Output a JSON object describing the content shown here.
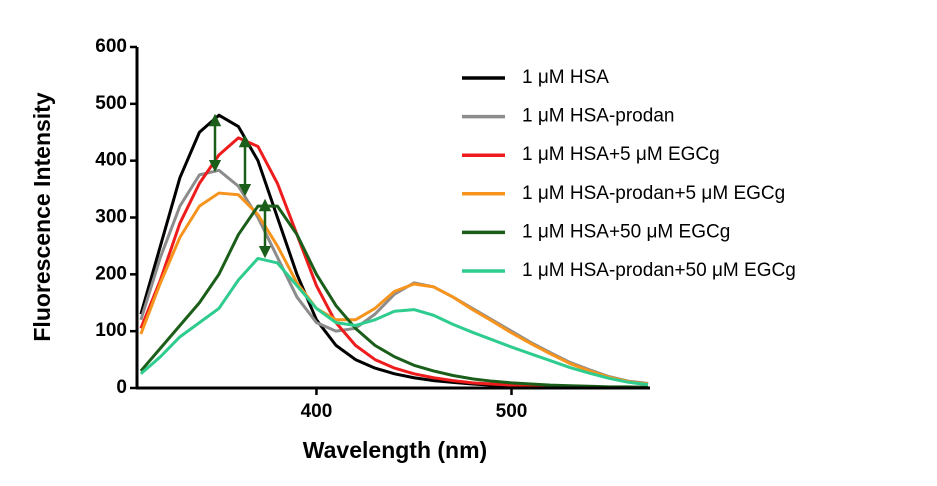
{
  "chart_data": {
    "type": "line",
    "x_label": "Wavelength (nm)",
    "y_label": "Fluorescence Intensity",
    "xlim": [
      308,
      571
    ],
    "xticks": [
      400,
      500
    ],
    "ylim": [
      0,
      600
    ],
    "yticks": [
      0,
      100,
      200,
      300,
      400,
      500,
      600
    ],
    "grid": false,
    "legend": "upper right",
    "x": [
      310,
      320,
      330,
      340,
      350,
      360,
      370,
      380,
      390,
      400,
      410,
      420,
      430,
      440,
      450,
      460,
      470,
      480,
      490,
      500,
      510,
      520,
      530,
      540,
      550,
      560,
      570
    ],
    "series": [
      {
        "name": "1 μM HSA",
        "color": "#000000",
        "values": [
          130,
          250,
          370,
          450,
          480,
          460,
          400,
          300,
          200,
          120,
          75,
          50,
          35,
          25,
          18,
          13,
          10,
          7,
          5,
          4,
          3,
          3,
          2,
          2,
          1,
          1,
          1
        ]
      },
      {
        "name": "1 μM HSA-prodan",
        "color": "#8c8c8c",
        "values": [
          120,
          230,
          320,
          375,
          383,
          355,
          300,
          230,
          160,
          115,
          100,
          105,
          130,
          165,
          185,
          178,
          160,
          140,
          120,
          100,
          80,
          62,
          45,
          32,
          20,
          12,
          8
        ]
      },
      {
        "name": "1 μM HSA+5 μM EGCg",
        "color": "#ee1c1c",
        "values": [
          105,
          190,
          290,
          360,
          410,
          440,
          425,
          360,
          270,
          180,
          115,
          75,
          50,
          35,
          25,
          18,
          13,
          9,
          7,
          5,
          4,
          3,
          2,
          2,
          1,
          1,
          1
        ]
      },
      {
        "name": "1 μM HSA-prodan+5 μM EGCg",
        "color": "#f7941d",
        "values": [
          95,
          185,
          265,
          320,
          343,
          340,
          305,
          250,
          185,
          140,
          120,
          120,
          140,
          170,
          183,
          178,
          160,
          138,
          118,
          97,
          78,
          60,
          43,
          30,
          19,
          11,
          7
        ]
      },
      {
        "name": "1 μM HSA+50 μM EGCg",
        "color": "#1a5e1a",
        "values": [
          30,
          70,
          110,
          150,
          200,
          270,
          320,
          320,
          270,
          200,
          145,
          105,
          75,
          55,
          40,
          30,
          22,
          16,
          12,
          9,
          7,
          5,
          4,
          3,
          2,
          2,
          1
        ]
      },
      {
        "name": "1 μM HSA-prodan+50 μM EGCg",
        "color": "#2ecc8e",
        "values": [
          25,
          55,
          90,
          115,
          140,
          190,
          228,
          220,
          180,
          140,
          115,
          110,
          120,
          135,
          138,
          128,
          112,
          98,
          85,
          72,
          60,
          48,
          36,
          26,
          17,
          10,
          6
        ]
      }
    ]
  }
}
